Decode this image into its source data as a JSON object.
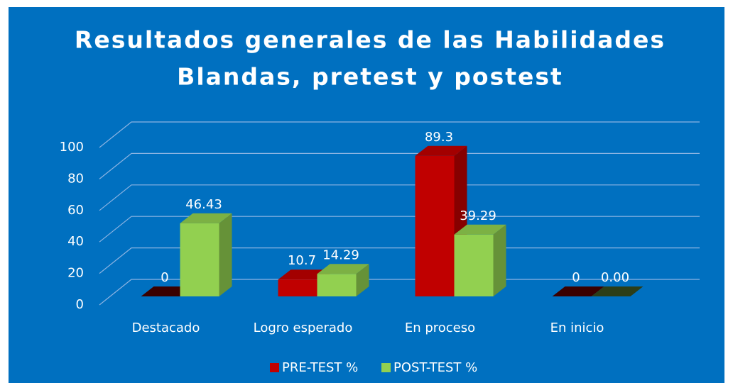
{
  "chart_data": {
    "type": "bar3d",
    "title": [
      "Resultados generales de las Habilidades",
      "Blandas, pretest y postest"
    ],
    "categories": [
      "Destacado",
      "Logro esperado",
      "En proceso",
      "En inicio"
    ],
    "series": [
      {
        "name": "PRE-TEST %",
        "color": "#c00000",
        "values": [
          0,
          10.7,
          89.3,
          0
        ]
      },
      {
        "name": "POST-TEST %",
        "color": "#92d050",
        "values": [
          46.43,
          14.29,
          39.29,
          0
        ],
        "value_labels": [
          "46.43",
          "14.29",
          "39.29",
          "0.00"
        ]
      }
    ],
    "ylim": [
      0,
      100
    ],
    "yticks": [
      0,
      20,
      40,
      60,
      80,
      100
    ],
    "grid": true,
    "legend": "bottom"
  }
}
